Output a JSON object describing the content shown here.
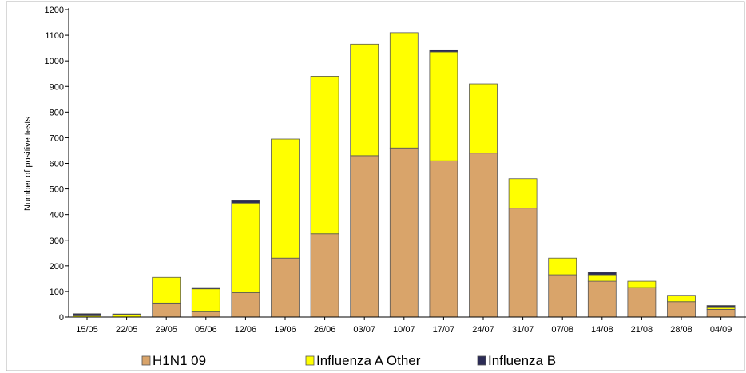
{
  "chart_data": {
    "type": "bar",
    "stacked": true,
    "title": "",
    "xlabel": "",
    "ylabel": "Number of positive tests",
    "ylim": [
      0,
      1200
    ],
    "yticks": [
      0,
      100,
      200,
      300,
      400,
      500,
      600,
      700,
      800,
      900,
      1000,
      1100,
      1200
    ],
    "grid": false,
    "legend_position": "bottom",
    "categories": [
      "15/05",
      "22/05",
      "29/05",
      "05/06",
      "12/06",
      "19/06",
      "26/06",
      "03/07",
      "10/07",
      "17/07",
      "24/07",
      "31/07",
      "07/08",
      "14/08",
      "21/08",
      "28/08",
      "04/09"
    ],
    "series": [
      {
        "name": "H1N1 09",
        "color": "#D9A46A",
        "values": [
          0,
          0,
          55,
          20,
          95,
          230,
          325,
          630,
          660,
          610,
          640,
          425,
          165,
          140,
          115,
          60,
          30
        ]
      },
      {
        "name": "Influenza A Other",
        "color": "#FFFF00",
        "values": [
          5,
          10,
          100,
          90,
          350,
          465,
          615,
          435,
          450,
          425,
          270,
          115,
          65,
          25,
          25,
          25,
          10
        ]
      },
      {
        "name": "Influenza B",
        "color": "#2B2B55",
        "values": [
          8,
          2,
          0,
          5,
          10,
          0,
          0,
          0,
          0,
          8,
          0,
          0,
          0,
          10,
          0,
          0,
          5
        ]
      }
    ]
  }
}
